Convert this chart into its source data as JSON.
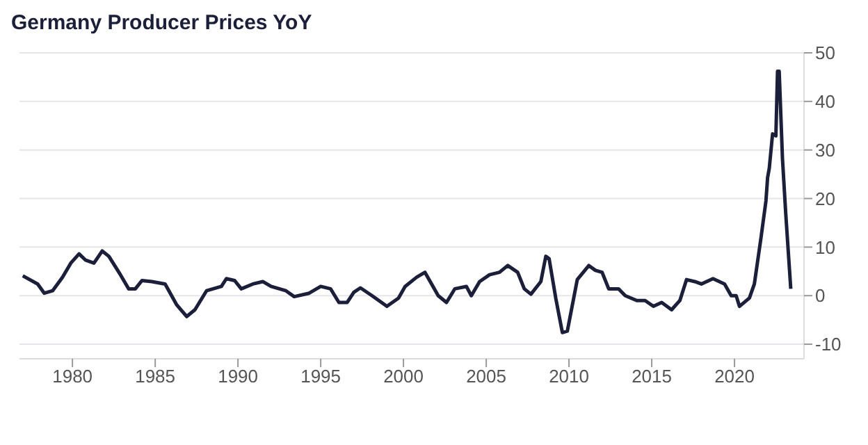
{
  "chart_data": {
    "type": "line",
    "title": "Germany Producer Prices YoY",
    "x": [
      1977.0,
      1977.9,
      1978.3,
      1978.8,
      1979.4,
      1979.9,
      1980.4,
      1980.8,
      1981.3,
      1981.8,
      1982.2,
      1982.9,
      1983.4,
      1983.8,
      1984.2,
      1984.8,
      1985.6,
      1986.3,
      1986.9,
      1987.4,
      1988.1,
      1989.0,
      1989.3,
      1989.8,
      1990.2,
      1990.9,
      1991.5,
      1992.0,
      1992.9,
      1993.4,
      1994.3,
      1995.0,
      1995.6,
      1996.1,
      1996.6,
      1997.0,
      1997.4,
      1998.1,
      1999.0,
      1999.7,
      2000.1,
      2000.8,
      2001.3,
      2002.1,
      2002.6,
      2003.1,
      2003.8,
      2004.1,
      2004.6,
      2005.2,
      2005.8,
      2006.3,
      2006.9,
      2007.3,
      2007.7,
      2008.3,
      2008.6,
      2008.8,
      2009.2,
      2009.6,
      2009.9,
      2010.5,
      2011.2,
      2011.6,
      2012.0,
      2012.4,
      2013.0,
      2013.4,
      2014.1,
      2014.6,
      2015.1,
      2015.6,
      2016.2,
      2016.7,
      2017.1,
      2017.6,
      2018.0,
      2018.7,
      2019.4,
      2019.8,
      2020.1,
      2020.3,
      2020.9,
      2021.2,
      2021.6,
      2021.9,
      2022.0,
      2022.1,
      2022.3,
      2022.5,
      2022.6,
      2022.7,
      2022.9,
      2023.1,
      2023.4
    ],
    "series": [
      {
        "color": "#1c1f3a",
        "values": [
          4.1,
          2.4,
          0.5,
          1.0,
          3.8,
          6.7,
          8.6,
          7.3,
          6.7,
          9.2,
          8.1,
          4.3,
          1.4,
          1.4,
          3.1,
          2.9,
          2.4,
          -1.9,
          -4.3,
          -2.9,
          1.0,
          1.9,
          3.5,
          3.1,
          1.4,
          2.4,
          2.9,
          1.9,
          1.0,
          -0.2,
          0.5,
          1.9,
          1.4,
          -1.4,
          -1.4,
          0.7,
          1.6,
          0,
          -2.2,
          -0.5,
          1.9,
          3.8,
          4.8,
          0,
          -1.4,
          1.4,
          1.9,
          0,
          2.9,
          4.3,
          4.8,
          6.2,
          4.8,
          1.4,
          0.3,
          2.9,
          8.1,
          7.6,
          -0.5,
          -7.6,
          -7.3,
          3.3,
          6.2,
          5.2,
          4.8,
          1.4,
          1.4,
          0,
          -1.0,
          -1.0,
          -2.2,
          -1.4,
          -2.9,
          -1.0,
          3.3,
          2.9,
          2.4,
          3.5,
          2.4,
          0,
          0,
          -2.2,
          -0.5,
          2.4,
          11.9,
          19.5,
          24.3,
          26.2,
          33.3,
          32.9,
          46.2,
          46.2,
          28.1,
          16.7,
          1.4
        ]
      }
    ],
    "xlim": [
      1976.8,
      2024.2
    ],
    "xticks": [
      1980,
      1985,
      1990,
      1995,
      2000,
      2005,
      2010,
      2015,
      2020
    ],
    "ylim": [
      -13,
      50
    ],
    "yticks": [
      -10,
      0,
      10,
      20,
      30,
      40,
      50
    ],
    "grid": "y",
    "legend": false,
    "marker": "none",
    "line_style": "solid"
  }
}
